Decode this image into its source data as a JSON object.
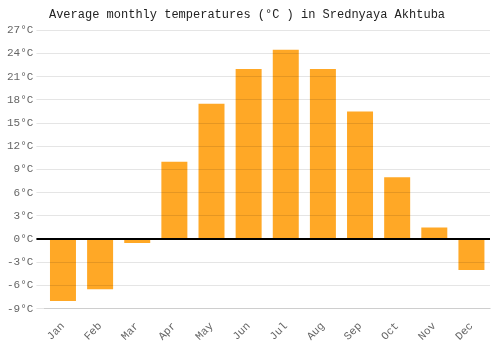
{
  "chart_data": {
    "type": "bar",
    "title": "Average monthly temperatures (°C ) in Srednyaya Akhtuba",
    "categories": [
      "Jan",
      "Feb",
      "Mar",
      "Apr",
      "May",
      "Jun",
      "Jul",
      "Aug",
      "Sep",
      "Oct",
      "Nov",
      "Dec"
    ],
    "values": [
      -8,
      -6.5,
      -0.5,
      10,
      17.5,
      22,
      24.5,
      22,
      16.5,
      8,
      1.5,
      -4
    ],
    "color": "#FFA826",
    "ylim": [
      -9,
      27
    ],
    "yticks": [
      {
        "value": -9,
        "label": "-9°C"
      },
      {
        "value": -6,
        "label": "-6°C"
      },
      {
        "value": -3,
        "label": "-3°C"
      },
      {
        "value": 0,
        "label": "0°C"
      },
      {
        "value": 3,
        "label": "3°C"
      },
      {
        "value": 6,
        "label": "6°C"
      },
      {
        "value": 9,
        "label": "9°C"
      },
      {
        "value": 12,
        "label": "12°C"
      },
      {
        "value": 15,
        "label": "15°C"
      },
      {
        "value": 18,
        "label": "18°C"
      },
      {
        "value": 21,
        "label": "21°C"
      },
      {
        "value": 24,
        "label": "24°C"
      },
      {
        "value": 27,
        "label": "27°C"
      }
    ],
    "grid": true
  }
}
